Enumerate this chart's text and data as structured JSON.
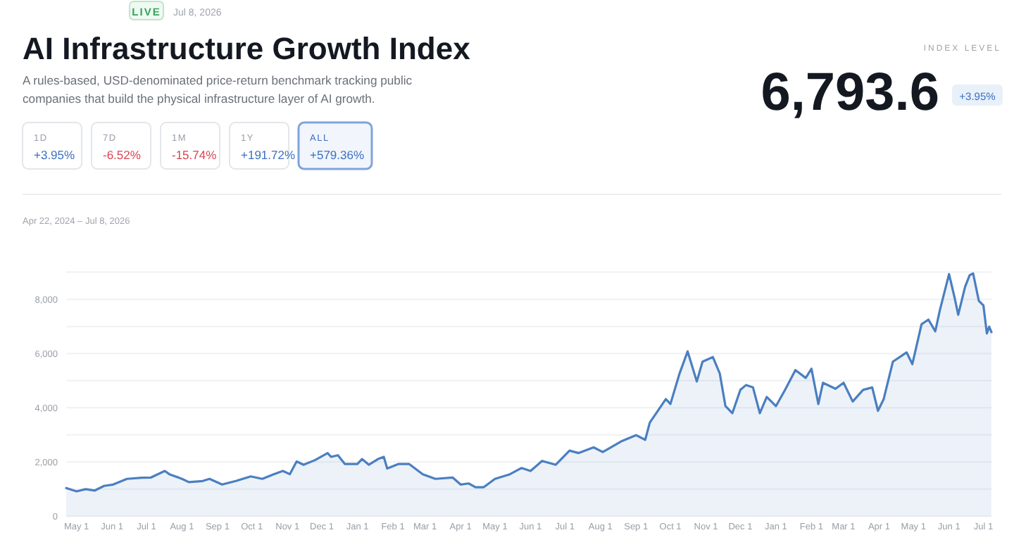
{
  "chart_data": {
    "type": "area",
    "title": "AI Infrastructure Growth Index",
    "subtitle": "A rules-based, USD-denominated price-return benchmark tracking public companies that build the physical infrastructure layer of AI growth.",
    "annotations": [
      "LIVE",
      "Jul 8, 2026",
      "1D",
      "+3.95%",
      "7D",
      "-6.52%",
      "1M",
      "-15.74%",
      "1Y",
      "+191.72%",
      "ALL",
      "+579.36%",
      "INDEX LEVEL",
      "6,793.6",
      "+3.95%",
      "Apr 22, 2024 – Jul 8, 2026"
    ],
    "x": [
      "2024-04-22",
      "2024-05-01",
      "2024-05-09",
      "2024-05-17",
      "2024-05-25",
      "2024-06-02",
      "2024-06-14",
      "2024-06-27",
      "2024-07-05",
      "2024-07-17",
      "2024-07-21",
      "2024-08-01",
      "2024-08-07",
      "2024-08-19",
      "2024-08-25",
      "2024-09-05",
      "2024-09-17",
      "2024-09-30",
      "2024-10-10",
      "2024-10-20",
      "2024-10-28",
      "2024-11-03",
      "2024-11-09",
      "2024-11-15",
      "2024-11-25",
      "2024-12-06",
      "2024-12-09",
      "2024-12-15",
      "2024-12-21",
      "2025-01-01",
      "2025-01-05",
      "2025-01-11",
      "2025-01-19",
      "2025-01-24",
      "2025-01-27",
      "2025-02-06",
      "2025-02-15",
      "2025-02-27",
      "2025-03-10",
      "2025-03-25",
      "2025-04-01",
      "2025-04-08",
      "2025-04-14",
      "2025-04-21",
      "2025-05-01",
      "2025-05-14",
      "2025-05-24",
      "2025-06-01",
      "2025-06-11",
      "2025-06-23",
      "2025-07-05",
      "2025-07-13",
      "2025-07-26",
      "2025-08-03",
      "2025-08-19",
      "2025-09-01",
      "2025-09-09",
      "2025-09-13",
      "2025-09-27",
      "2025-10-01",
      "2025-10-09",
      "2025-10-16",
      "2025-10-24",
      "2025-10-29",
      "2025-11-07",
      "2025-11-13",
      "2025-11-18",
      "2025-11-24",
      "2025-12-01",
      "2025-12-06",
      "2025-12-12",
      "2025-12-18",
      "2025-12-24",
      "2026-01-01",
      "2026-01-09",
      "2026-01-18",
      "2026-01-27",
      "2026-02-01",
      "2026-02-07",
      "2026-02-11",
      "2026-02-22",
      "2026-03-01",
      "2026-03-09",
      "2026-03-18",
      "2026-03-26",
      "2026-03-31",
      "2026-04-05",
      "2026-04-13",
      "2026-04-25",
      "2026-04-30",
      "2026-05-08",
      "2026-05-14",
      "2026-05-20",
      "2026-05-24",
      "2026-06-01",
      "2026-06-06",
      "2026-06-09",
      "2026-06-15",
      "2026-06-19",
      "2026-06-22",
      "2026-06-27",
      "2026-07-01",
      "2026-07-04",
      "2026-07-06",
      "2026-07-08"
    ],
    "series": [
      {
        "color": "#4a7fc1",
        "values": [
          1040,
          920,
          1000,
          950,
          1120,
          1170,
          1380,
          1420,
          1430,
          1670,
          1550,
          1380,
          1260,
          1300,
          1380,
          1170,
          1300,
          1470,
          1380,
          1550,
          1670,
          1550,
          2020,
          1900,
          2070,
          2330,
          2190,
          2250,
          1930,
          1930,
          2110,
          1900,
          2110,
          2190,
          1760,
          1930,
          1930,
          1550,
          1380,
          1430,
          1170,
          1210,
          1070,
          1070,
          1380,
          1550,
          1780,
          1670,
          2040,
          1900,
          2420,
          2330,
          2540,
          2370,
          2760,
          2990,
          2820,
          3450,
          4320,
          4140,
          5270,
          6080,
          4970,
          5700,
          5870,
          5270,
          4060,
          3800,
          4660,
          4840,
          4750,
          3800,
          4400,
          4060,
          4660,
          5390,
          5100,
          5440,
          4140,
          4920,
          4700,
          4920,
          4230,
          4660,
          4750,
          3890,
          4320,
          5700,
          6040,
          5610,
          7080,
          7250,
          6820,
          7600,
          8930,
          8030,
          7430,
          8460,
          8890,
          8950,
          7940,
          7770,
          6740,
          6990,
          6790
        ]
      }
    ],
    "xlim": [
      "2024-04-22",
      "2026-07-08"
    ],
    "xticks": [
      {
        "value": "2024-05-01",
        "label": "May 1"
      },
      {
        "value": "2024-06-01",
        "label": "Jun 1"
      },
      {
        "value": "2024-07-01",
        "label": "Jul 1"
      },
      {
        "value": "2024-08-01",
        "label": "Aug 1"
      },
      {
        "value": "2024-09-01",
        "label": "Sep 1"
      },
      {
        "value": "2024-10-01",
        "label": "Oct 1"
      },
      {
        "value": "2024-11-01",
        "label": "Nov 1"
      },
      {
        "value": "2024-12-01",
        "label": "Dec 1"
      },
      {
        "value": "2025-01-01",
        "label": "Jan 1"
      },
      {
        "value": "2025-02-01",
        "label": "Feb 1"
      },
      {
        "value": "2025-03-01",
        "label": "Mar 1"
      },
      {
        "value": "2025-04-01",
        "label": "Apr 1"
      },
      {
        "value": "2025-05-01",
        "label": "May 1"
      },
      {
        "value": "2025-06-01",
        "label": "Jun 1"
      },
      {
        "value": "2025-07-01",
        "label": "Jul 1"
      },
      {
        "value": "2025-08-01",
        "label": "Aug 1"
      },
      {
        "value": "2025-09-01",
        "label": "Sep 1"
      },
      {
        "value": "2025-10-01",
        "label": "Oct 1"
      },
      {
        "value": "2025-11-01",
        "label": "Nov 1"
      },
      {
        "value": "2025-12-01",
        "label": "Dec 1"
      },
      {
        "value": "2026-01-01",
        "label": "Jan 1"
      },
      {
        "value": "2026-02-01",
        "label": "Feb 1"
      },
      {
        "value": "2026-03-01",
        "label": "Mar 1"
      },
      {
        "value": "2026-04-01",
        "label": "Apr 1"
      },
      {
        "value": "2026-05-01",
        "label": "May 1"
      },
      {
        "value": "2026-06-01",
        "label": "Jun 1"
      },
      {
        "value": "2026-07-01",
        "label": "Jul 1"
      }
    ],
    "ylim": [
      0,
      9000
    ],
    "yticks": [
      0,
      {
        "value": 1000,
        "label": null
      },
      {
        "value": 2000,
        "label": "2,000"
      },
      {
        "value": 3000,
        "label": null
      },
      {
        "value": 4000,
        "label": "4,000"
      },
      {
        "value": 5000,
        "label": null
      },
      {
        "value": 6000,
        "label": "6,000"
      },
      {
        "value": 7000,
        "label": null
      },
      {
        "value": 8000,
        "label": "8,000"
      },
      {
        "value": 9000,
        "label": null
      }
    ],
    "grid": "y"
  }
}
